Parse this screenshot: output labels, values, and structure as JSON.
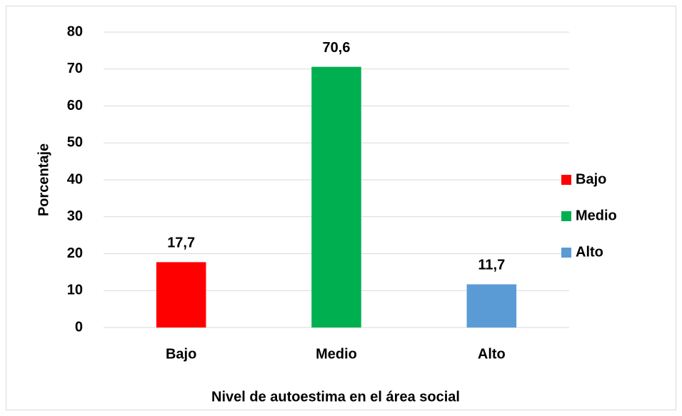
{
  "chart_data": {
    "type": "bar",
    "categories": [
      "Bajo",
      "Medio",
      "Alto"
    ],
    "values": [
      17.7,
      70.6,
      11.7
    ],
    "value_labels": [
      "17,7",
      "70,6",
      "11,7"
    ],
    "colors": [
      "#ff0000",
      "#00b050",
      "#5b9bd5"
    ],
    "ylim": [
      0,
      80
    ],
    "yticks": [
      0,
      10,
      20,
      30,
      40,
      50,
      60,
      70,
      80
    ],
    "grid": true,
    "xlabel": "Nivel de autoestima en el área social",
    "ylabel": "Porcentaje",
    "legend": "right"
  }
}
